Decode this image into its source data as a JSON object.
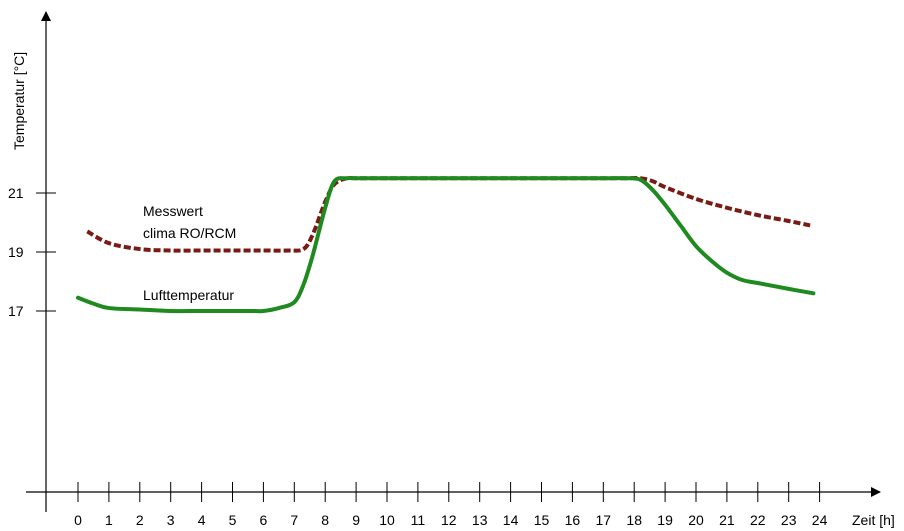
{
  "chart_data": {
    "type": "line",
    "title": "",
    "xlabel": "Zeit [h]",
    "ylabel": "Temperatur [°C]",
    "xlim": [
      0,
      24
    ],
    "xticks": [
      0,
      1,
      2,
      3,
      4,
      5,
      6,
      7,
      8,
      9,
      10,
      11,
      12,
      13,
      14,
      15,
      16,
      17,
      18,
      19,
      20,
      21,
      22,
      23,
      24
    ],
    "yticks": [
      17,
      19,
      21
    ],
    "grid": false,
    "series": [
      {
        "name": "Messwert clima RO/RCM",
        "name_lines": [
          "Messwert",
          "clima RO/RCM"
        ],
        "color": "#7a1a14",
        "style": "dashed",
        "x": [
          0.3,
          1,
          2,
          3,
          4,
          5,
          6,
          6.8,
          7.3,
          7.6,
          8,
          8.3,
          8.7,
          9,
          10,
          12,
          14,
          16,
          17,
          17.7,
          18.2,
          18.6,
          19,
          20,
          21,
          22,
          23,
          23.7
        ],
        "y": [
          19.7,
          19.3,
          19.1,
          19.05,
          19.05,
          19.05,
          19.05,
          19.05,
          19.1,
          19.6,
          20.7,
          21.3,
          21.5,
          21.5,
          21.5,
          21.5,
          21.5,
          21.5,
          21.5,
          21.5,
          21.5,
          21.4,
          21.2,
          20.8,
          20.5,
          20.25,
          20.05,
          19.9
        ]
      },
      {
        "name": "Lufttemperatur",
        "color": "#1f8a1f",
        "style": "solid",
        "x": [
          0,
          0.5,
          1,
          2,
          3,
          4,
          5,
          5.7,
          6,
          6.5,
          7,
          7.3,
          7.6,
          8,
          8.3,
          8.7,
          9,
          10,
          12,
          14,
          16,
          17,
          17.7,
          18.2,
          18.6,
          19,
          19.5,
          20,
          20.5,
          21,
          21.5,
          22,
          23,
          23.8
        ],
        "y": [
          17.45,
          17.25,
          17.1,
          17.05,
          17.0,
          17.0,
          17.0,
          17.0,
          17.0,
          17.1,
          17.3,
          17.9,
          18.9,
          20.5,
          21.4,
          21.5,
          21.5,
          21.5,
          21.5,
          21.5,
          21.5,
          21.5,
          21.5,
          21.45,
          21.1,
          20.6,
          19.9,
          19.2,
          18.7,
          18.3,
          18.05,
          17.95,
          17.75,
          17.6
        ]
      }
    ]
  }
}
